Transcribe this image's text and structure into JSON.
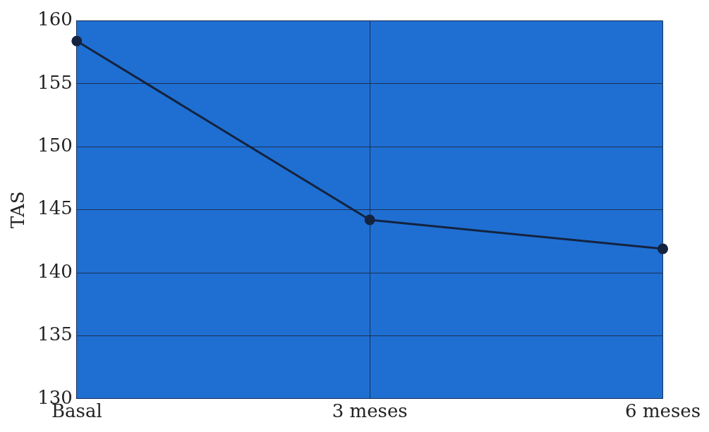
{
  "chart_data": {
    "type": "line",
    "ylabel": "TAS",
    "categories": [
      "Basal",
      "3 meses",
      "6 meses"
    ],
    "series": [
      {
        "color": "#14233f",
        "values": [
          158.4,
          144.2,
          141.9
        ]
      }
    ],
    "ylim": [
      130,
      160
    ],
    "yticks": [
      130,
      135,
      140,
      145,
      150,
      155,
      160
    ],
    "grid": true,
    "legend": false,
    "marker": "circle",
    "line_style": "solid"
  }
}
